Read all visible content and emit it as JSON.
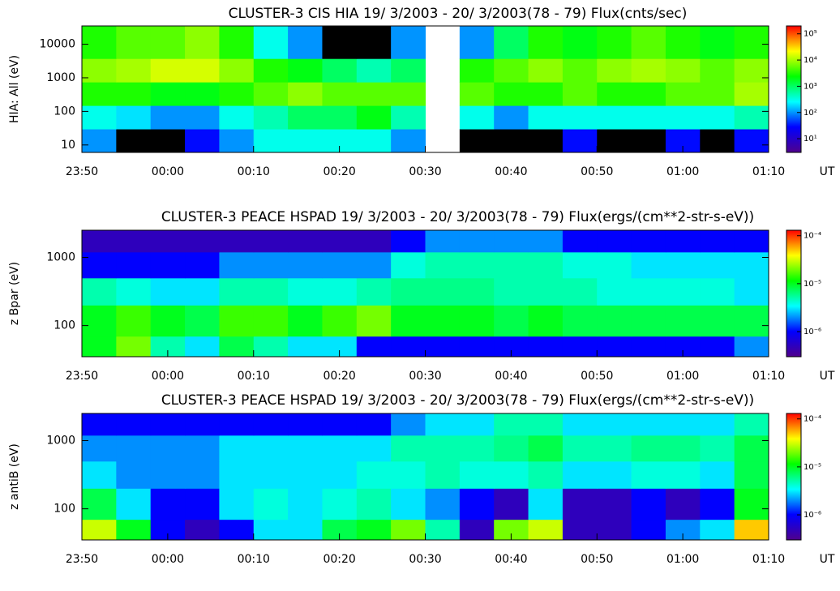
{
  "chart_data": [
    {
      "type": "heatmap",
      "title": "CLUSTER-3  CIS HIA 19/ 3/2003 - 20/ 3/2003(78 - 79) Flux(cnts/sec)",
      "ylabel": "HIA: All (eV)",
      "xlabel": "UT",
      "xticks": [
        "23:50",
        "00:00",
        "00:10",
        "00:20",
        "00:30",
        "00:40",
        "00:50",
        "01:00",
        "01:10"
      ],
      "ylim": [
        6,
        35000
      ],
      "yticks": [
        10,
        100,
        1000,
        10000
      ],
      "log_y": true,
      "ybins": [
        6,
        30,
        150,
        750,
        3750,
        35000
      ],
      "z": [
        [
          100,
          0,
          0,
          30,
          100,
          300,
          300,
          300,
          300,
          100,
          null,
          0,
          0,
          0,
          30,
          0,
          0,
          30,
          0,
          30
        ],
        [
          300,
          200,
          100,
          100,
          300,
          500,
          1000,
          1000,
          2000,
          500,
          null,
          300,
          100,
          300,
          300,
          300,
          300,
          300,
          300,
          500
        ],
        [
          3000,
          3000,
          2000,
          2000,
          3000,
          5000,
          8000,
          5000,
          5000,
          5000,
          null,
          5000,
          3000,
          3000,
          5000,
          3000,
          3000,
          5000,
          5000,
          10000
        ],
        [
          8000,
          10000,
          15000,
          15000,
          8000,
          3000,
          2000,
          1000,
          500,
          1000,
          null,
          3000,
          5000,
          8000,
          5000,
          8000,
          10000,
          8000,
          5000,
          8000
        ],
        [
          3000,
          5000,
          5000,
          8000,
          3000,
          300,
          100,
          0,
          0,
          100,
          null,
          100,
          1000,
          3000,
          2000,
          3000,
          5000,
          3000,
          2000,
          3000
        ]
      ],
      "clim": [
        3,
        200000
      ],
      "colorscale": "rainbow-log",
      "cticks": [
        {
          "value": 10,
          "label": "10¹"
        },
        {
          "value": 100,
          "label": "10²"
        },
        {
          "value": 1000,
          "label": "10³"
        },
        {
          "value": 10000,
          "label": "10⁴"
        },
        {
          "value": 100000,
          "label": "10⁵"
        }
      ]
    },
    {
      "type": "heatmap",
      "title": "CLUSTER-3  PEACE HSPAD 19/ 3/2003 - 20/ 3/2003(78 - 79) Flux(ergs/(cm**2-str-s-eV))",
      "ylabel": "z Bpar (eV)",
      "xlabel": "UT",
      "xticks": [
        "23:50",
        "00:00",
        "00:10",
        "00:20",
        "00:30",
        "00:40",
        "00:50",
        "01:00",
        "01:10"
      ],
      "ylim": [
        35,
        2500
      ],
      "yticks": [
        100,
        1000
      ],
      "log_y": true,
      "ybins": [
        35,
        70,
        200,
        500,
        1200,
        2500
      ],
      "z": [
        [
          1e-05,
          2e-05,
          5e-06,
          3e-06,
          8e-06,
          5e-06,
          3e-06,
          3e-06,
          1e-06,
          1e-06,
          1e-06,
          1e-06,
          1e-06,
          1e-06,
          1e-06,
          1e-06,
          1e-06,
          1e-06,
          1e-06,
          2e-06
        ],
        [
          1e-05,
          1.5e-05,
          1e-05,
          8e-06,
          1.5e-05,
          1.5e-05,
          1e-05,
          1.5e-05,
          2e-05,
          1e-05,
          1e-05,
          1e-05,
          8e-06,
          1e-05,
          8e-06,
          8e-06,
          8e-06,
          8e-06,
          8e-06,
          8e-06
        ],
        [
          5e-06,
          4e-06,
          3e-06,
          3e-06,
          5e-06,
          5e-06,
          4e-06,
          4e-06,
          5e-06,
          6e-06,
          6e-06,
          6e-06,
          5e-06,
          5e-06,
          5e-06,
          4e-06,
          4e-06,
          4e-06,
          4e-06,
          3e-06
        ],
        [
          1e-06,
          1e-06,
          1e-06,
          1e-06,
          2e-06,
          2e-06,
          2e-06,
          2e-06,
          2e-06,
          4e-06,
          5e-06,
          5e-06,
          5e-06,
          5e-06,
          4e-06,
          4e-06,
          3e-06,
          3e-06,
          3e-06,
          3e-06
        ],
        [
          5e-07,
          5e-07,
          5e-07,
          5e-07,
          5e-07,
          5e-07,
          5e-07,
          5e-07,
          5e-07,
          1e-06,
          2e-06,
          2e-06,
          2e-06,
          2e-06,
          1e-06,
          1e-06,
          1e-06,
          1e-06,
          1e-06,
          1e-06
        ]
      ],
      "clim": [
        3e-07,
        0.00013
      ],
      "colorscale": "rainbow-log",
      "cticks": [
        {
          "value": 1e-06,
          "label": "10⁻⁶"
        },
        {
          "value": 1e-05,
          "label": "10⁻⁵"
        },
        {
          "value": 0.0001,
          "label": "10⁻⁴"
        }
      ]
    },
    {
      "type": "heatmap",
      "title": "CLUSTER-3  PEACE HSPAD 19/ 3/2003 - 20/ 3/2003(78 - 79) Flux(ergs/(cm**2-str-s-eV))",
      "ylabel": "z antiB (eV)",
      "xlabel": "UT",
      "xticks": [
        "23:50",
        "00:00",
        "00:10",
        "00:20",
        "00:30",
        "00:40",
        "00:50",
        "01:00",
        "01:10"
      ],
      "ylim": [
        35,
        2500
      ],
      "yticks": [
        100,
        1000
      ],
      "log_y": true,
      "ybins": [
        35,
        70,
        200,
        500,
        1200,
        2500
      ],
      "z": [
        [
          3e-05,
          1e-05,
          1e-06,
          5e-07,
          1e-06,
          3e-06,
          3e-06,
          8e-06,
          1e-05,
          2e-05,
          5e-06,
          5e-07,
          2e-05,
          3e-05,
          5e-07,
          5e-07,
          1e-06,
          2e-06,
          3e-06,
          5e-05
        ],
        [
          8e-06,
          3e-06,
          1e-06,
          1e-06,
          3e-06,
          4e-06,
          3e-06,
          4e-06,
          5e-06,
          3e-06,
          2e-06,
          1e-06,
          5e-07,
          3e-06,
          5e-07,
          5e-07,
          1e-06,
          5e-07,
          1e-06,
          1e-05
        ],
        [
          3e-06,
          2e-06,
          2e-06,
          2e-06,
          3e-06,
          3e-06,
          3e-06,
          3e-06,
          4e-06,
          4e-06,
          5e-06,
          4e-06,
          4e-06,
          5e-06,
          3e-06,
          3e-06,
          4e-06,
          4e-06,
          3e-06,
          8e-06
        ],
        [
          2e-06,
          2e-06,
          2e-06,
          2e-06,
          3e-06,
          3e-06,
          3e-06,
          3e-06,
          3e-06,
          5e-06,
          5e-06,
          5e-06,
          6e-06,
          8e-06,
          5e-06,
          5e-06,
          6e-06,
          6e-06,
          5e-06,
          8e-06
        ],
        [
          1e-06,
          1e-06,
          1e-06,
          1e-06,
          1e-06,
          1e-06,
          1e-06,
          1e-06,
          1e-06,
          2e-06,
          3e-06,
          3e-06,
          5e-06,
          5e-06,
          3e-06,
          3e-06,
          3e-06,
          3e-06,
          3e-06,
          5e-06
        ]
      ],
      "clim": [
        3e-07,
        0.00013
      ],
      "colorscale": "rainbow-log",
      "cticks": [
        {
          "value": 1e-06,
          "label": "10⁻⁶"
        },
        {
          "value": 1e-05,
          "label": "10⁻⁵"
        },
        {
          "value": 0.0001,
          "label": "10⁻⁴"
        }
      ]
    }
  ]
}
